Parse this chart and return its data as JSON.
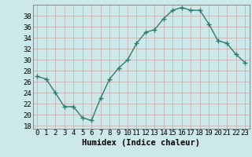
{
  "x": [
    0,
    1,
    2,
    3,
    4,
    5,
    6,
    7,
    8,
    9,
    10,
    11,
    12,
    13,
    14,
    15,
    16,
    17,
    18,
    19,
    20,
    21,
    22,
    23
  ],
  "y": [
    27,
    26.5,
    24,
    21.5,
    21.5,
    19.5,
    19,
    23,
    26.5,
    28.5,
    30,
    33,
    35,
    35.5,
    37.5,
    39,
    39.5,
    39,
    39,
    36.5,
    33.5,
    33,
    31,
    29.5
  ],
  "line_color": "#2e7d6e",
  "marker": "+",
  "marker_size": 4,
  "bg_color": "#cde8e8",
  "grid_color": "#c8a8a8",
  "xlabel": "Humidex (Indice chaleur)",
  "xlabel_fontsize": 7.5,
  "ylabel_ticks": [
    18,
    20,
    22,
    24,
    26,
    28,
    30,
    32,
    34,
    36,
    38
  ],
  "xlim": [
    -0.5,
    23.5
  ],
  "ylim": [
    17.5,
    40
  ],
  "xticks": [
    0,
    1,
    2,
    3,
    4,
    5,
    6,
    7,
    8,
    9,
    10,
    11,
    12,
    13,
    14,
    15,
    16,
    17,
    18,
    19,
    20,
    21,
    22,
    23
  ],
  "xtick_labels": [
    "0",
    "1",
    "2",
    "3",
    "4",
    "5",
    "6",
    "7",
    "8",
    "9",
    "10",
    "11",
    "12",
    "13",
    "14",
    "15",
    "16",
    "17",
    "18",
    "19",
    "20",
    "21",
    "22",
    "23"
  ],
  "tick_fontsize": 6.5,
  "line_width": 1.0
}
